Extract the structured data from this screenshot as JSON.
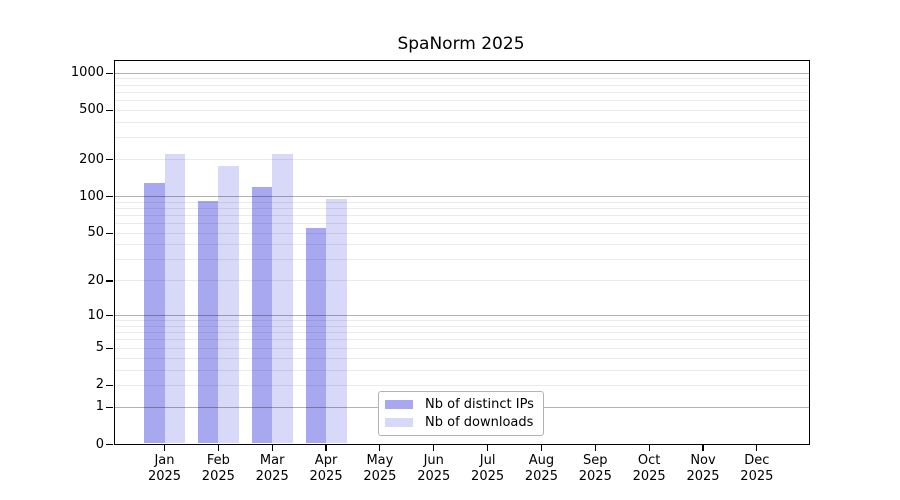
{
  "chart_data": {
    "type": "bar",
    "title": "SpaNorm 2025",
    "categories": [
      "Jan",
      "Feb",
      "Mar",
      "Apr",
      "May",
      "Jun",
      "Jul",
      "Aug",
      "Sep",
      "Oct",
      "Nov",
      "Dec"
    ],
    "year_label": "2025",
    "series": [
      {
        "name": "Nb of distinct IPs",
        "color": "#a8a8f0",
        "values": [
          130,
          92,
          120,
          55,
          null,
          null,
          null,
          null,
          null,
          null,
          null,
          null
        ]
      },
      {
        "name": "Nb of downloads",
        "color": "#d8d8f8",
        "values": [
          220,
          178,
          220,
          95,
          null,
          null,
          null,
          null,
          null,
          null,
          null,
          null
        ]
      }
    ],
    "y_axis": {
      "scale": "log1p",
      "min": 0,
      "max": 1000,
      "ticks": [
        0,
        1,
        2,
        5,
        10,
        20,
        50,
        100,
        200,
        500,
        1000
      ]
    },
    "x_axis": {
      "tick_labels_two_lines": true
    },
    "grid": {
      "major": "on",
      "minor": "on",
      "major_color": "#b0b0b0",
      "minor_color": "#ebebeb"
    },
    "legend_position": "lower-center",
    "background_color": "#ffffff",
    "axis_color": "#000000"
  }
}
